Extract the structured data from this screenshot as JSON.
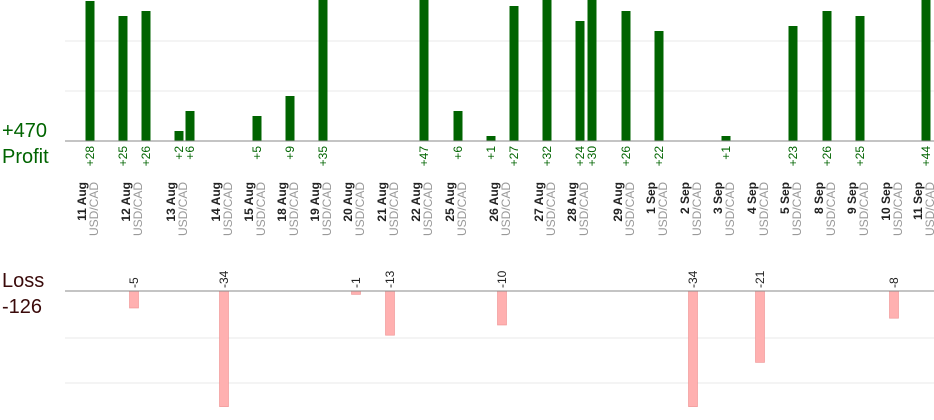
{
  "chart_data": {
    "type": "bar",
    "title": "",
    "profit": {
      "total_label": "+470",
      "caption": "Profit",
      "bar_color": "#006400",
      "label_color": "#006400"
    },
    "loss": {
      "total_label": "-126",
      "caption": "Loss",
      "bar_color": "#ffb0b0",
      "label_color": "#222222"
    },
    "caption_color": "#006400",
    "loss_caption_color": "#3a0a0a",
    "date_color": "#222222",
    "pair_color": "#999999",
    "grid": true,
    "profit_axis_range": [
      0,
      28
    ],
    "loss_axis_range": [
      -28,
      0
    ],
    "dates": [
      {
        "date": "11 Aug",
        "pair": "USD/CAD"
      },
      {
        "date": "12 Aug",
        "pair": "USD/CAD"
      },
      {
        "date": "13 Aug",
        "pair": "USD/CAD"
      },
      {
        "date": "14 Aug",
        "pair": "USD/CAD"
      },
      {
        "date": "15 Aug",
        "pair": "USD/CAD"
      },
      {
        "date": "18 Aug",
        "pair": "USD/CAD"
      },
      {
        "date": "19 Aug",
        "pair": "USD/CAD"
      },
      {
        "date": "20 Aug",
        "pair": "USD/CAD"
      },
      {
        "date": "21 Aug",
        "pair": "USD/CAD"
      },
      {
        "date": "22 Aug",
        "pair": "USD/CAD"
      },
      {
        "date": "25 Aug",
        "pair": "USD/CAD"
      },
      {
        "date": "26 Aug",
        "pair": "USD/CAD"
      },
      {
        "date": "27 Aug",
        "pair": "USD/CAD"
      },
      {
        "date": "28 Aug",
        "pair": "USD/CAD"
      },
      {
        "date": "29 Aug",
        "pair": "USD/CAD"
      },
      {
        "date": "1 Sep",
        "pair": "USD/CAD"
      },
      {
        "date": "2 Sep",
        "pair": "USD/CAD"
      },
      {
        "date": "3 Sep",
        "pair": "USD/CAD"
      },
      {
        "date": "4 Sep",
        "pair": "USD/CAD"
      },
      {
        "date": "5 Sep",
        "pair": "USD/CAD"
      },
      {
        "date": "8 Sep",
        "pair": "USD/CAD"
      },
      {
        "date": "9 Sep",
        "pair": "USD/CAD"
      },
      {
        "date": "10 Sep",
        "pair": "USD/CAD"
      },
      {
        "date": "11 Sep",
        "pair": "USD/CAD"
      }
    ],
    "profit_trades": [
      {
        "date": "11 Aug",
        "value": 28,
        "label": "+28"
      },
      {
        "date": "12 Aug",
        "value": 25,
        "label": "+25"
      },
      {
        "date": "12 Aug",
        "value": 26,
        "label": "+26"
      },
      {
        "date": "13 Aug",
        "value": 2,
        "label": "+2"
      },
      {
        "date": "13 Aug",
        "value": 6,
        "label": "+6"
      },
      {
        "date": "15 Aug",
        "value": 5,
        "label": "+5"
      },
      {
        "date": "18 Aug",
        "value": 9,
        "label": "+9"
      },
      {
        "date": "19 Aug",
        "value": 35,
        "label": "+35"
      },
      {
        "date": "22 Aug",
        "value": 47,
        "label": "+47"
      },
      {
        "date": "25 Aug",
        "value": 6,
        "label": "+6"
      },
      {
        "date": "26 Aug",
        "value": 1,
        "label": "+1"
      },
      {
        "date": "26 Aug",
        "value": 27,
        "label": "+27"
      },
      {
        "date": "27 Aug",
        "value": 32,
        "label": "+32"
      },
      {
        "date": "28 Aug",
        "value": 24,
        "label": "+24"
      },
      {
        "date": "28 Aug",
        "value": 30,
        "label": "+30"
      },
      {
        "date": "29 Aug",
        "value": 26,
        "label": "+26"
      },
      {
        "date": "1 Sep",
        "value": 22,
        "label": "+22"
      },
      {
        "date": "3 Sep",
        "value": 1,
        "label": "+1"
      },
      {
        "date": "5 Sep",
        "value": 23,
        "label": "+23"
      },
      {
        "date": "8 Sep",
        "value": 26,
        "label": "+26"
      },
      {
        "date": "9 Sep",
        "value": 25,
        "label": "+25"
      },
      {
        "date": "11 Sep",
        "value": 44,
        "label": "+44"
      }
    ],
    "loss_trades": [
      {
        "date": "12 Aug",
        "value": -5,
        "label": "-5"
      },
      {
        "date": "14 Aug",
        "value": -34,
        "label": "-34"
      },
      {
        "date": "20 Aug",
        "value": -1,
        "label": "-1"
      },
      {
        "date": "21 Aug",
        "value": -13,
        "label": "-13"
      },
      {
        "date": "26 Aug",
        "value": -10,
        "label": "-10"
      },
      {
        "date": "2 Sep",
        "value": -34,
        "label": "-34"
      },
      {
        "date": "4 Sep",
        "value": -21,
        "label": "-21"
      },
      {
        "date": "10 Sep",
        "value": -8,
        "label": "-8"
      }
    ]
  }
}
